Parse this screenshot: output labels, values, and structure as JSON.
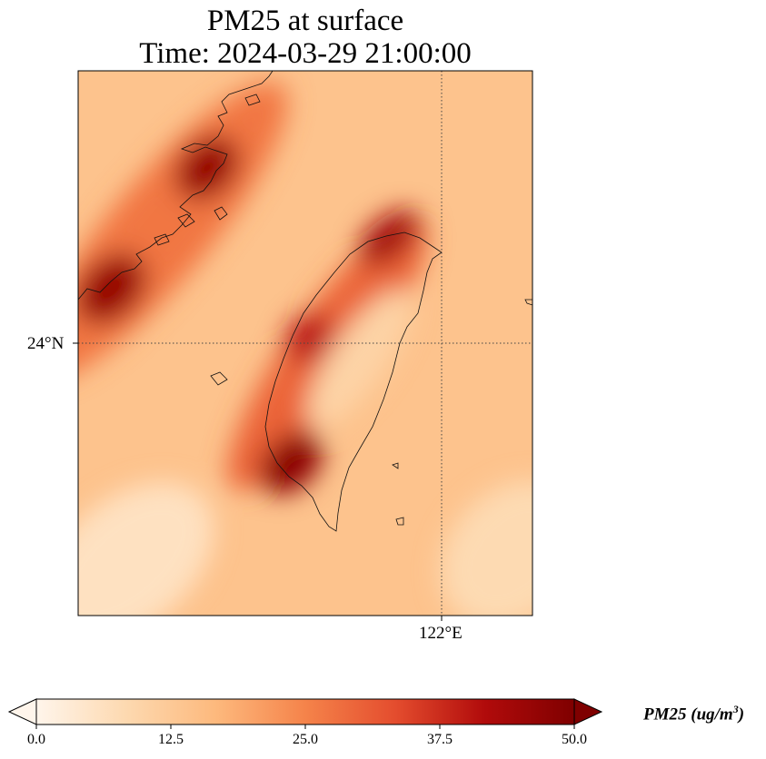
{
  "title": {
    "line1": "PM25 at surface",
    "line2": "Time: 2024-03-29 21:00:00"
  },
  "axes": {
    "lat_tick": "24°N",
    "lon_tick": "122°E"
  },
  "colorbar": {
    "label_main": "PM25 (ug/m",
    "label_sup": "3",
    "label_close": ")",
    "min": 0,
    "max": 50,
    "ticks": [
      "0.0",
      "12.5",
      "25.0",
      "37.5",
      "50.0"
    ],
    "colormap": [
      "#fff5eb",
      "#fdd9b0",
      "#fdb97d",
      "#f5834a",
      "#e44d2e",
      "#b10b0b",
      "#7f0000"
    ],
    "extend": "both"
  },
  "map": {
    "background_value": 14,
    "plumes": [
      {
        "name": "coast-band",
        "value": 27
      },
      {
        "name": "taiwan-west",
        "value": 30
      },
      {
        "name": "north-hotspot",
        "value": 46
      },
      {
        "name": "fujian-hotspot",
        "value": 46
      },
      {
        "name": "taipei-hotspot",
        "value": 44
      },
      {
        "name": "west-coast-hotspot",
        "value": 40
      },
      {
        "name": "tainan-hotspot",
        "value": 48
      },
      {
        "name": "central-mountain-low",
        "value": 10
      },
      {
        "name": "east-sea-low",
        "value": 8
      },
      {
        "name": "southwest-low",
        "value": 6
      }
    ]
  }
}
